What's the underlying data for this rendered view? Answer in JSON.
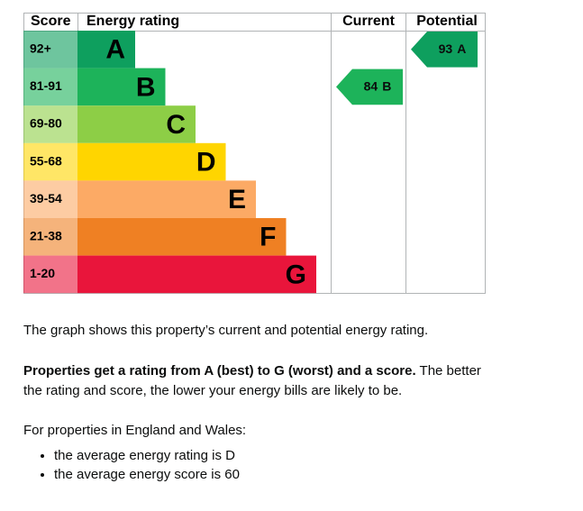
{
  "chart_data": {
    "type": "epc",
    "headers": {
      "score": "Score",
      "rating": "Energy rating",
      "current": "Current",
      "potential": "Potential"
    },
    "bands": [
      {
        "range": "92+",
        "letter": "A",
        "color": "#0e9f5e"
      },
      {
        "range": "81-91",
        "letter": "B",
        "color": "#1db35a"
      },
      {
        "range": "69-80",
        "letter": "C",
        "color": "#8dce46"
      },
      {
        "range": "55-68",
        "letter": "D",
        "color": "#ffd500"
      },
      {
        "range": "39-54",
        "letter": "E",
        "color": "#fcaa65"
      },
      {
        "range": "21-38",
        "letter": "F",
        "color": "#ef8023"
      },
      {
        "range": "1-20",
        "letter": "G",
        "color": "#e9153b"
      }
    ],
    "current": {
      "value": 84,
      "letter": "B"
    },
    "potential": {
      "value": 93,
      "letter": "A"
    }
  },
  "text": {
    "intro": "The graph shows this property’s current and potential energy rating.",
    "bold": "Properties get a rating from A (best) to G (worst) and a score.",
    "rest": "The better the rating and score, the lower your energy bills are likely to be.",
    "region": "For properties in England and Wales:",
    "bullets": [
      "the average energy rating is D",
      "the average energy score is 60"
    ]
  }
}
